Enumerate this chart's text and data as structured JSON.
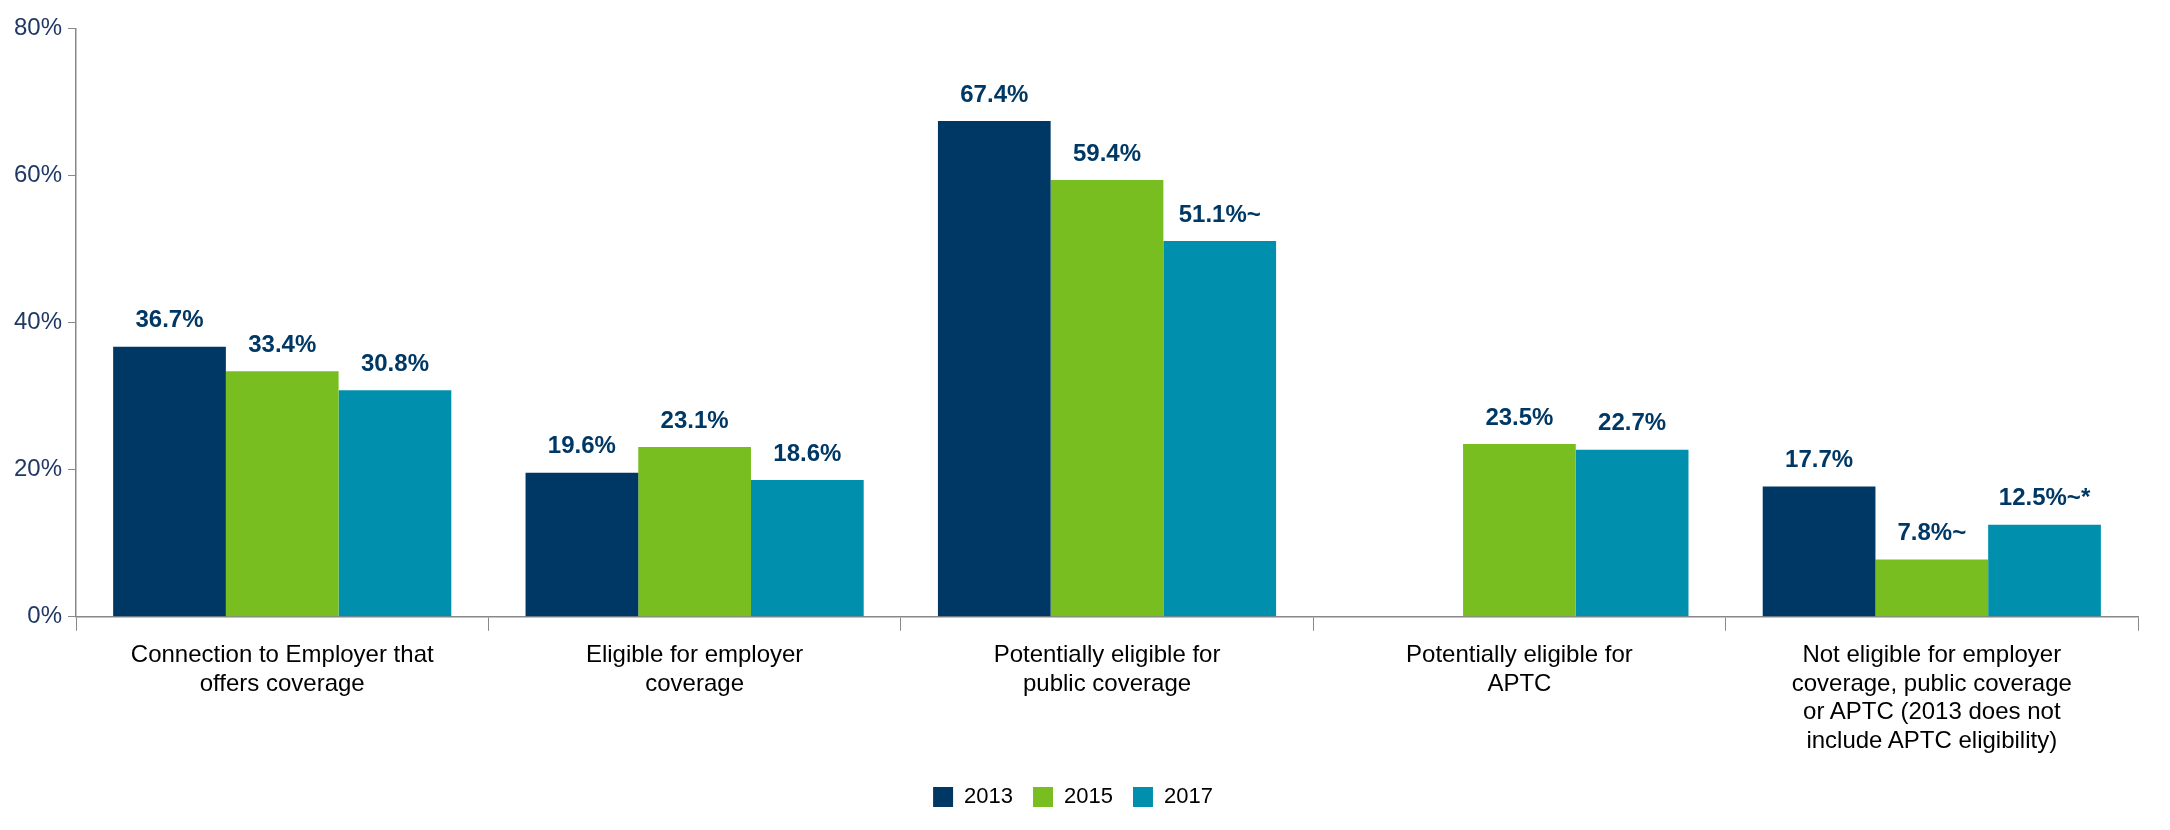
{
  "chart_data": {
    "type": "bar",
    "categories": [
      "Connection to Employer that offers coverage",
      "Eligible for employer coverage",
      "Potentially eligible for public coverage",
      "Potentially eligible for APTC",
      "Not eligible for employer coverage, public coverage or APTC (2013 does not include APTC eligibility)"
    ],
    "series": [
      {
        "name": "2013",
        "color": "#003865",
        "values": [
          36.7,
          19.6,
          67.4,
          null,
          17.7
        ],
        "value_labels": [
          "36.7%",
          "19.6%",
          "67.4%",
          null,
          "17.7%"
        ]
      },
      {
        "name": "2015",
        "color": "#78be20",
        "values": [
          33.4,
          23.1,
          59.4,
          23.5,
          7.8
        ],
        "value_labels": [
          "33.4%",
          "23.1%",
          "59.4%",
          "23.5%",
          "7.8%~"
        ]
      },
      {
        "name": "2017",
        "color": "#0090ad",
        "values": [
          30.8,
          18.6,
          51.1,
          22.7,
          12.5
        ],
        "value_labels": [
          "30.8%",
          "18.6%",
          "51.1%~",
          "22.7%",
          "12.5%~*"
        ]
      }
    ],
    "ylim": [
      0,
      80
    ],
    "yticks": [
      {
        "value": 0,
        "label": "0%"
      },
      {
        "value": 20,
        "label": "20%"
      },
      {
        "value": 40,
        "label": "40%"
      },
      {
        "value": 60,
        "label": "60%"
      },
      {
        "value": 80,
        "label": "80%"
      }
    ],
    "grid": false,
    "legend": "bottom"
  }
}
